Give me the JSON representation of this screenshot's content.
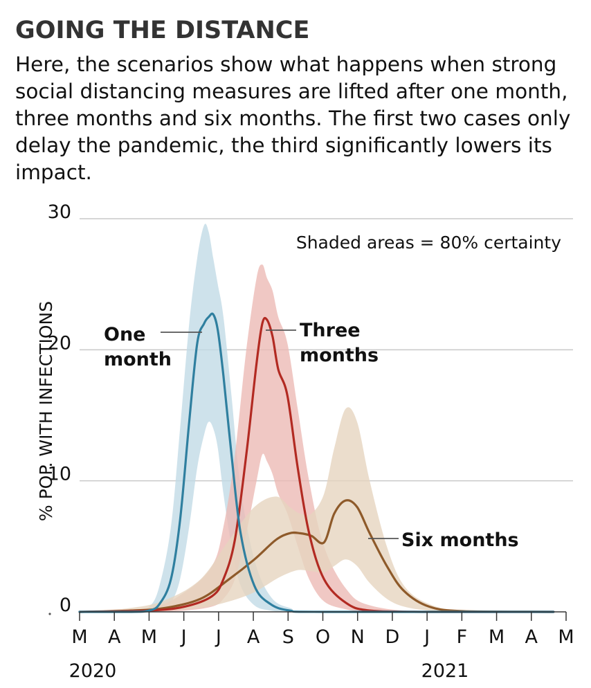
{
  "title": "GOING THE DISTANCE",
  "subtitle": "Here, the scenarios show what happens when strong social distancing measures are lifted after one month, three months and six months. The first two cases only delay the pandemic, the third significantly lowers its impact.",
  "chart_data": {
    "type": "area",
    "ylabel": "% POP. WITH INFECTIONS",
    "note": "Shaded areas = 80% certainty",
    "ylim": [
      0,
      30
    ],
    "yticks": [
      0,
      10,
      20,
      30
    ],
    "xlim": [
      "2020-03-01",
      "2021-05-01"
    ],
    "xtick_labels": [
      "M",
      "A",
      "M",
      "J",
      "J",
      "A",
      "S",
      "O",
      "N",
      "D",
      "J",
      "F",
      "M",
      "A",
      "M"
    ],
    "year_labels": [
      "2020",
      "2021"
    ],
    "grid": true,
    "series": [
      {
        "name": "One month",
        "color": "#2f7f9f",
        "band_color": "#c2dbe6",
        "x": [
          "2020-03-01",
          "2020-04-15",
          "2020-05-01",
          "2020-05-10",
          "2020-05-20",
          "2020-05-28",
          "2020-06-05",
          "2020-06-12",
          "2020-06-18",
          "2020-06-22",
          "2020-06-26",
          "2020-06-30",
          "2020-07-05",
          "2020-07-12",
          "2020-07-20",
          "2020-08-01",
          "2020-08-15",
          "2020-09-01",
          "2020-10-01",
          "2021-04-20"
        ],
        "median": [
          0,
          0,
          0.1,
          0.6,
          2.5,
          7,
          14.5,
          20.5,
          22,
          22.5,
          22.7,
          21.5,
          18,
          12,
          6,
          2,
          0.6,
          0.1,
          0,
          0
        ],
        "lower": [
          0,
          0,
          0,
          0.1,
          0.7,
          2.5,
          6.5,
          11,
          13.5,
          14.5,
          14,
          12.5,
          9,
          5,
          2,
          0.5,
          0.1,
          0,
          0,
          0
        ],
        "upper": [
          0,
          0,
          0.4,
          2,
          6.5,
          14,
          22,
          27,
          29.5,
          29,
          27,
          25,
          22.5,
          16.5,
          9.5,
          4,
          1.2,
          0.3,
          0,
          0
        ]
      },
      {
        "name": "Three months",
        "color": "#b22a22",
        "band_color": "#ecbab5",
        "x": [
          "2020-03-01",
          "2020-05-01",
          "2020-06-01",
          "2020-06-25",
          "2020-07-05",
          "2020-07-15",
          "2020-07-25",
          "2020-08-03",
          "2020-08-08",
          "2020-08-12",
          "2020-08-17",
          "2020-08-22",
          "2020-08-30",
          "2020-09-08",
          "2020-09-18",
          "2020-10-01",
          "2020-10-20",
          "2020-11-10",
          "2021-01-01",
          "2021-04-20"
        ],
        "median": [
          0,
          0.1,
          0.4,
          1.2,
          2.5,
          5.5,
          12,
          19,
          22,
          22.3,
          21,
          18.5,
          16.5,
          11,
          6,
          2.5,
          0.7,
          0.1,
          0,
          0
        ],
        "lower": [
          0,
          0,
          0.1,
          0.4,
          1,
          2.5,
          6,
          10,
          12,
          11.5,
          10.5,
          9,
          7.5,
          5,
          2.5,
          0.8,
          0.2,
          0,
          0,
          0
        ],
        "upper": [
          0,
          0.3,
          1.5,
          3.5,
          6.5,
          12,
          20,
          25.5,
          26.5,
          25.5,
          24.5,
          22.5,
          20.5,
          15.5,
          10,
          5,
          1.8,
          0.5,
          0,
          0
        ]
      },
      {
        "name": "Six months",
        "color": "#8e5a2a",
        "band_color": "#e6d5bf",
        "x": [
          "2020-03-01",
          "2020-04-15",
          "2020-05-15",
          "2020-06-15",
          "2020-07-10",
          "2020-08-01",
          "2020-08-20",
          "2020-09-01",
          "2020-09-10",
          "2020-09-20",
          "2020-10-01",
          "2020-10-10",
          "2020-10-20",
          "2020-10-30",
          "2020-11-10",
          "2020-11-25",
          "2020-12-10",
          "2021-01-01",
          "2021-02-01",
          "2021-04-20"
        ],
        "median": [
          0,
          0.1,
          0.3,
          1,
          2.5,
          4,
          5.5,
          6,
          6,
          5.8,
          5.3,
          7.5,
          8.5,
          8,
          6,
          3.5,
          1.6,
          0.4,
          0.05,
          0
        ],
        "lower": [
          0,
          0,
          0.1,
          0.3,
          0.8,
          1.5,
          2.5,
          3,
          3.2,
          3.1,
          3,
          3.5,
          4,
          3.5,
          2.2,
          1,
          0.4,
          0.1,
          0,
          0
        ],
        "upper": [
          0,
          0.3,
          0.9,
          2.5,
          5.5,
          8,
          8.8,
          8,
          7.5,
          7.5,
          9,
          12.5,
          15.5,
          14.5,
          10,
          5,
          2,
          0.6,
          0.1,
          0
        ]
      }
    ]
  }
}
